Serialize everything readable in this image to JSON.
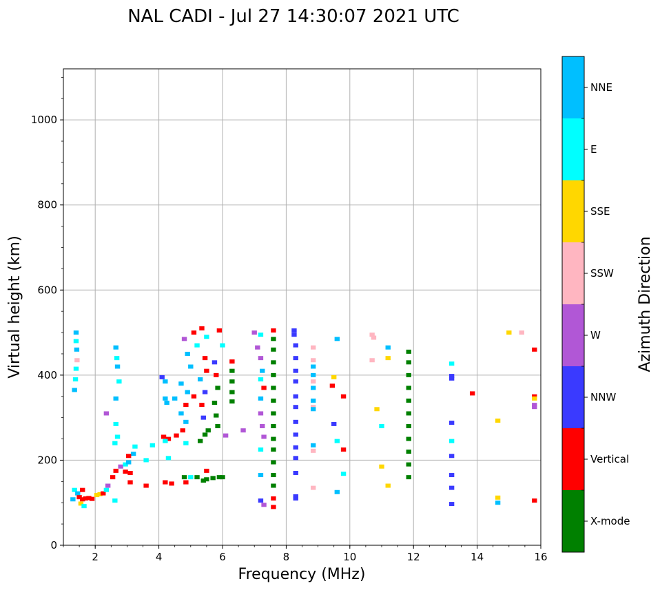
{
  "chart_data": {
    "type": "scatter",
    "title": "NAL CADI - Jul 27 14:30:07 2021 UTC",
    "xlabel": "Frequency (MHz)",
    "ylabel": "Virtual height (km)",
    "xlim": [
      1,
      16
    ],
    "ylim": [
      0,
      1120
    ],
    "xticks": [
      2,
      4,
      6,
      8,
      10,
      12,
      14,
      16
    ],
    "yticks": [
      0,
      200,
      400,
      600,
      800,
      1000
    ],
    "grid": true,
    "colorbar": {
      "label": "Azimuth Direction",
      "categories": [
        "X-mode",
        "Vertical",
        "NNW",
        "W",
        "SSW",
        "SSE",
        "E",
        "NNE"
      ],
      "colors": [
        "#008000",
        "#ff0000",
        "#3a3aff",
        "#b157d6",
        "#ffb6c1",
        "#ffd700",
        "#00ffff",
        "#00bfff"
      ]
    },
    "points": [
      {
        "f": 1.4,
        "h": 500,
        "c": "NNE"
      },
      {
        "f": 1.4,
        "h": 480,
        "c": "E"
      },
      {
        "f": 1.42,
        "h": 460,
        "c": "NNE"
      },
      {
        "f": 1.43,
        "h": 435,
        "c": "SSW"
      },
      {
        "f": 1.4,
        "h": 415,
        "c": "E"
      },
      {
        "f": 1.38,
        "h": 390,
        "c": "E"
      },
      {
        "f": 1.35,
        "h": 365,
        "c": "NNE"
      },
      {
        "f": 1.35,
        "h": 130,
        "c": "E"
      },
      {
        "f": 1.45,
        "h": 122,
        "c": "NNE"
      },
      {
        "f": 1.5,
        "h": 113,
        "c": "Vertical"
      },
      {
        "f": 1.6,
        "h": 108,
        "c": "Vertical"
      },
      {
        "f": 1.7,
        "h": 110,
        "c": "Vertical"
      },
      {
        "f": 1.8,
        "h": 111,
        "c": "Vertical"
      },
      {
        "f": 1.9,
        "h": 109,
        "c": "Vertical"
      },
      {
        "f": 1.55,
        "h": 98,
        "c": "SSE"
      },
      {
        "f": 1.65,
        "h": 92,
        "c": "E"
      },
      {
        "f": 1.3,
        "h": 108,
        "c": "NNE"
      },
      {
        "f": 1.6,
        "h": 130,
        "c": "Vertical"
      },
      {
        "f": 2.05,
        "h": 118,
        "c": "SSE"
      },
      {
        "f": 2.15,
        "h": 120,
        "c": "SSE"
      },
      {
        "f": 2.25,
        "h": 122,
        "c": "Vertical"
      },
      {
        "f": 2.35,
        "h": 130,
        "c": "E"
      },
      {
        "f": 2.4,
        "h": 140,
        "c": "W"
      },
      {
        "f": 2.55,
        "h": 160,
        "c": "Vertical"
      },
      {
        "f": 2.65,
        "h": 175,
        "c": "Vertical"
      },
      {
        "f": 2.8,
        "h": 185,
        "c": "W"
      },
      {
        "f": 2.95,
        "h": 190,
        "c": "E"
      },
      {
        "f": 3.05,
        "h": 195,
        "c": "NNE"
      },
      {
        "f": 3.2,
        "h": 215,
        "c": "NNE"
      },
      {
        "f": 3.25,
        "h": 232,
        "c": "E"
      },
      {
        "f": 2.95,
        "h": 173,
        "c": "Vertical"
      },
      {
        "f": 3.1,
        "h": 170,
        "c": "Vertical"
      },
      {
        "f": 3.05,
        "h": 210,
        "c": "Vertical"
      },
      {
        "f": 3.1,
        "h": 148,
        "c": "Vertical"
      },
      {
        "f": 2.35,
        "h": 310,
        "c": "W"
      },
      {
        "f": 2.65,
        "h": 465,
        "c": "NNE"
      },
      {
        "f": 2.68,
        "h": 440,
        "c": "E"
      },
      {
        "f": 2.7,
        "h": 420,
        "c": "NNE"
      },
      {
        "f": 2.75,
        "h": 385,
        "c": "E"
      },
      {
        "f": 2.65,
        "h": 345,
        "c": "NNE"
      },
      {
        "f": 2.65,
        "h": 285,
        "c": "E"
      },
      {
        "f": 2.7,
        "h": 255,
        "c": "E"
      },
      {
        "f": 2.62,
        "h": 240,
        "c": "E"
      },
      {
        "f": 2.62,
        "h": 105,
        "c": "E"
      },
      {
        "f": 4.1,
        "h": 395,
        "c": "NNW"
      },
      {
        "f": 4.2,
        "h": 385,
        "c": "NNE"
      },
      {
        "f": 4.2,
        "h": 345,
        "c": "NNE"
      },
      {
        "f": 4.25,
        "h": 335,
        "c": "NNE"
      },
      {
        "f": 4.5,
        "h": 345,
        "c": "NNE"
      },
      {
        "f": 4.15,
        "h": 255,
        "c": "Vertical"
      },
      {
        "f": 4.3,
        "h": 250,
        "c": "Vertical"
      },
      {
        "f": 4.2,
        "h": 245,
        "c": "E"
      },
      {
        "f": 4.55,
        "h": 258,
        "c": "Vertical"
      },
      {
        "f": 4.3,
        "h": 205,
        "c": "E"
      },
      {
        "f": 4.2,
        "h": 148,
        "c": "Vertical"
      },
      {
        "f": 4.4,
        "h": 145,
        "c": "Vertical"
      },
      {
        "f": 3.8,
        "h": 235,
        "c": "E"
      },
      {
        "f": 3.6,
        "h": 200,
        "c": "E"
      },
      {
        "f": 3.6,
        "h": 140,
        "c": "Vertical"
      },
      {
        "f": 4.8,
        "h": 485,
        "c": "W"
      },
      {
        "f": 5.1,
        "h": 500,
        "c": "Vertical"
      },
      {
        "f": 5.2,
        "h": 470,
        "c": "E"
      },
      {
        "f": 4.9,
        "h": 450,
        "c": "NNE"
      },
      {
        "f": 5.0,
        "h": 420,
        "c": "NNE"
      },
      {
        "f": 4.7,
        "h": 380,
        "c": "NNE"
      },
      {
        "f": 4.9,
        "h": 360,
        "c": "NNE"
      },
      {
        "f": 5.1,
        "h": 350,
        "c": "Vertical"
      },
      {
        "f": 4.85,
        "h": 330,
        "c": "Vertical"
      },
      {
        "f": 4.7,
        "h": 310,
        "c": "NNE"
      },
      {
        "f": 4.85,
        "h": 290,
        "c": "NNE"
      },
      {
        "f": 4.75,
        "h": 270,
        "c": "Vertical"
      },
      {
        "f": 4.85,
        "h": 240,
        "c": "E"
      },
      {
        "f": 4.8,
        "h": 160,
        "c": "X-mode"
      },
      {
        "f": 4.85,
        "h": 148,
        "c": "Vertical"
      },
      {
        "f": 5.0,
        "h": 160,
        "c": "E"
      },
      {
        "f": 5.35,
        "h": 510,
        "c": "Vertical"
      },
      {
        "f": 5.5,
        "h": 490,
        "c": "E"
      },
      {
        "f": 5.45,
        "h": 440,
        "c": "Vertical"
      },
      {
        "f": 5.5,
        "h": 410,
        "c": "Vertical"
      },
      {
        "f": 5.3,
        "h": 390,
        "c": "NNE"
      },
      {
        "f": 5.45,
        "h": 360,
        "c": "NNW"
      },
      {
        "f": 5.35,
        "h": 330,
        "c": "Vertical"
      },
      {
        "f": 5.4,
        "h": 300,
        "c": "NNW"
      },
      {
        "f": 5.55,
        "h": 270,
        "c": "X-mode"
      },
      {
        "f": 5.45,
        "h": 260,
        "c": "X-mode"
      },
      {
        "f": 5.3,
        "h": 245,
        "c": "X-mode"
      },
      {
        "f": 5.2,
        "h": 160,
        "c": "X-mode"
      },
      {
        "f": 5.5,
        "h": 155,
        "c": "X-mode"
      },
      {
        "f": 5.4,
        "h": 152,
        "c": "X-mode"
      },
      {
        "f": 5.7,
        "h": 158,
        "c": "X-mode"
      },
      {
        "f": 5.5,
        "h": 175,
        "c": "Vertical"
      },
      {
        "f": 5.75,
        "h": 430,
        "c": "NNW"
      },
      {
        "f": 5.9,
        "h": 505,
        "c": "Vertical"
      },
      {
        "f": 6.0,
        "h": 470,
        "c": "E"
      },
      {
        "f": 5.8,
        "h": 400,
        "c": "Vertical"
      },
      {
        "f": 5.85,
        "h": 370,
        "c": "X-mode"
      },
      {
        "f": 5.75,
        "h": 335,
        "c": "X-mode"
      },
      {
        "f": 5.8,
        "h": 305,
        "c": "X-mode"
      },
      {
        "f": 5.85,
        "h": 280,
        "c": "X-mode"
      },
      {
        "f": 5.9,
        "h": 160,
        "c": "X-mode"
      },
      {
        "f": 6.0,
        "h": 160,
        "c": "X-mode"
      },
      {
        "f": 6.1,
        "h": 258,
        "c": "W"
      },
      {
        "f": 6.3,
        "h": 432,
        "c": "Vertical"
      },
      {
        "f": 6.3,
        "h": 385,
        "c": "X-mode"
      },
      {
        "f": 6.3,
        "h": 360,
        "c": "X-mode"
      },
      {
        "f": 6.3,
        "h": 338,
        "c": "X-mode"
      },
      {
        "f": 6.3,
        "h": 410,
        "c": "X-mode"
      },
      {
        "f": 6.65,
        "h": 270,
        "c": "W"
      },
      {
        "f": 7.0,
        "h": 500,
        "c": "W"
      },
      {
        "f": 7.2,
        "h": 495,
        "c": "E"
      },
      {
        "f": 7.1,
        "h": 465,
        "c": "W"
      },
      {
        "f": 7.2,
        "h": 440,
        "c": "W"
      },
      {
        "f": 7.25,
        "h": 410,
        "c": "NNE"
      },
      {
        "f": 7.2,
        "h": 390,
        "c": "E"
      },
      {
        "f": 7.3,
        "h": 370,
        "c": "Vertical"
      },
      {
        "f": 7.2,
        "h": 345,
        "c": "NNE"
      },
      {
        "f": 7.2,
        "h": 310,
        "c": "W"
      },
      {
        "f": 7.25,
        "h": 280,
        "c": "W"
      },
      {
        "f": 7.3,
        "h": 255,
        "c": "W"
      },
      {
        "f": 7.2,
        "h": 225,
        "c": "E"
      },
      {
        "f": 7.2,
        "h": 165,
        "c": "NNE"
      },
      {
        "f": 7.2,
        "h": 105,
        "c": "NNW"
      },
      {
        "f": 7.3,
        "h": 95,
        "c": "W"
      },
      {
        "f": 7.6,
        "h": 505,
        "c": "Vertical"
      },
      {
        "f": 7.6,
        "h": 485,
        "c": "X-mode"
      },
      {
        "f": 7.6,
        "h": 460,
        "c": "X-mode"
      },
      {
        "f": 7.6,
        "h": 430,
        "c": "X-mode"
      },
      {
        "f": 7.6,
        "h": 400,
        "c": "X-mode"
      },
      {
        "f": 7.6,
        "h": 370,
        "c": "X-mode"
      },
      {
        "f": 7.6,
        "h": 340,
        "c": "X-mode"
      },
      {
        "f": 7.6,
        "h": 310,
        "c": "X-mode"
      },
      {
        "f": 7.6,
        "h": 280,
        "c": "X-mode"
      },
      {
        "f": 7.6,
        "h": 250,
        "c": "X-mode"
      },
      {
        "f": 7.6,
        "h": 225,
        "c": "X-mode"
      },
      {
        "f": 7.6,
        "h": 195,
        "c": "X-mode"
      },
      {
        "f": 7.6,
        "h": 165,
        "c": "X-mode"
      },
      {
        "f": 7.6,
        "h": 140,
        "c": "X-mode"
      },
      {
        "f": 7.6,
        "h": 110,
        "c": "Vertical"
      },
      {
        "f": 7.6,
        "h": 90,
        "c": "Vertical"
      },
      {
        "f": 8.25,
        "h": 505,
        "c": "NNW"
      },
      {
        "f": 8.25,
        "h": 495,
        "c": "NNW"
      },
      {
        "f": 8.3,
        "h": 470,
        "c": "NNW"
      },
      {
        "f": 8.3,
        "h": 440,
        "c": "NNW"
      },
      {
        "f": 8.3,
        "h": 410,
        "c": "NNW"
      },
      {
        "f": 8.3,
        "h": 385,
        "c": "NNW"
      },
      {
        "f": 8.3,
        "h": 350,
        "c": "NNW"
      },
      {
        "f": 8.3,
        "h": 325,
        "c": "NNW"
      },
      {
        "f": 8.3,
        "h": 290,
        "c": "NNW"
      },
      {
        "f": 8.3,
        "h": 260,
        "c": "NNW"
      },
      {
        "f": 8.3,
        "h": 230,
        "c": "NNW"
      },
      {
        "f": 8.3,
        "h": 205,
        "c": "NNW"
      },
      {
        "f": 8.3,
        "h": 170,
        "c": "NNW"
      },
      {
        "f": 8.3,
        "h": 115,
        "c": "NNW"
      },
      {
        "f": 8.3,
        "h": 110,
        "c": "NNW"
      },
      {
        "f": 8.85,
        "h": 465,
        "c": "SSW"
      },
      {
        "f": 8.85,
        "h": 435,
        "c": "SSW"
      },
      {
        "f": 8.85,
        "h": 420,
        "c": "NNE"
      },
      {
        "f": 8.85,
        "h": 400,
        "c": "NNE"
      },
      {
        "f": 8.85,
        "h": 385,
        "c": "SSW"
      },
      {
        "f": 8.85,
        "h": 370,
        "c": "NNE"
      },
      {
        "f": 8.85,
        "h": 340,
        "c": "NNE"
      },
      {
        "f": 8.85,
        "h": 325,
        "c": "SSW"
      },
      {
        "f": 8.85,
        "h": 320,
        "c": "NNE"
      },
      {
        "f": 8.85,
        "h": 235,
        "c": "NNE"
      },
      {
        "f": 8.85,
        "h": 222,
        "c": "SSW"
      },
      {
        "f": 8.85,
        "h": 135,
        "c": "SSW"
      },
      {
        "f": 9.6,
        "h": 485,
        "c": "NNE"
      },
      {
        "f": 9.5,
        "h": 395,
        "c": "SSE"
      },
      {
        "f": 9.45,
        "h": 375,
        "c": "Vertical"
      },
      {
        "f": 9.8,
        "h": 350,
        "c": "Vertical"
      },
      {
        "f": 9.5,
        "h": 285,
        "c": "NNW"
      },
      {
        "f": 9.6,
        "h": 245,
        "c": "E"
      },
      {
        "f": 9.8,
        "h": 225,
        "c": "Vertical"
      },
      {
        "f": 9.8,
        "h": 168,
        "c": "E"
      },
      {
        "f": 9.6,
        "h": 125,
        "c": "NNE"
      },
      {
        "f": 10.7,
        "h": 495,
        "c": "SSW"
      },
      {
        "f": 10.75,
        "h": 488,
        "c": "SSW"
      },
      {
        "f": 10.7,
        "h": 435,
        "c": "SSW"
      },
      {
        "f": 10.85,
        "h": 320,
        "c": "SSE"
      },
      {
        "f": 11.2,
        "h": 465,
        "c": "NNE"
      },
      {
        "f": 11.2,
        "h": 440,
        "c": "SSE"
      },
      {
        "f": 11.0,
        "h": 185,
        "c": "SSE"
      },
      {
        "f": 11.2,
        "h": 140,
        "c": "SSE"
      },
      {
        "f": 11.0,
        "h": 280,
        "c": "E"
      },
      {
        "f": 11.85,
        "h": 455,
        "c": "X-mode"
      },
      {
        "f": 11.85,
        "h": 430,
        "c": "X-mode"
      },
      {
        "f": 11.85,
        "h": 400,
        "c": "X-mode"
      },
      {
        "f": 11.85,
        "h": 370,
        "c": "X-mode"
      },
      {
        "f": 11.85,
        "h": 340,
        "c": "X-mode"
      },
      {
        "f": 11.85,
        "h": 310,
        "c": "X-mode"
      },
      {
        "f": 11.85,
        "h": 280,
        "c": "X-mode"
      },
      {
        "f": 11.85,
        "h": 250,
        "c": "X-mode"
      },
      {
        "f": 11.85,
        "h": 220,
        "c": "X-mode"
      },
      {
        "f": 11.85,
        "h": 190,
        "c": "X-mode"
      },
      {
        "f": 11.85,
        "h": 160,
        "c": "X-mode"
      },
      {
        "f": 13.2,
        "h": 427,
        "c": "E"
      },
      {
        "f": 13.2,
        "h": 398,
        "c": "NNW"
      },
      {
        "f": 13.2,
        "h": 392,
        "c": "NNW"
      },
      {
        "f": 13.2,
        "h": 288,
        "c": "NNW"
      },
      {
        "f": 13.2,
        "h": 245,
        "c": "E"
      },
      {
        "f": 13.2,
        "h": 210,
        "c": "NNW"
      },
      {
        "f": 13.2,
        "h": 165,
        "c": "NNW"
      },
      {
        "f": 13.2,
        "h": 135,
        "c": "NNW"
      },
      {
        "f": 13.2,
        "h": 97,
        "c": "NNW"
      },
      {
        "f": 13.85,
        "h": 357,
        "c": "Vertical"
      },
      {
        "f": 14.65,
        "h": 293,
        "c": "SSE"
      },
      {
        "f": 14.65,
        "h": 112,
        "c": "SSE"
      },
      {
        "f": 14.65,
        "h": 100,
        "c": "NNE"
      },
      {
        "f": 15.0,
        "h": 500,
        "c": "SSE"
      },
      {
        "f": 15.4,
        "h": 500,
        "c": "SSW"
      },
      {
        "f": 15.8,
        "h": 460,
        "c": "Vertical"
      },
      {
        "f": 15.8,
        "h": 350,
        "c": "Vertical"
      },
      {
        "f": 15.8,
        "h": 345,
        "c": "SSE"
      },
      {
        "f": 15.8,
        "h": 330,
        "c": "W"
      },
      {
        "f": 15.8,
        "h": 325,
        "c": "W"
      },
      {
        "f": 15.8,
        "h": 105,
        "c": "Vertical"
      }
    ]
  }
}
